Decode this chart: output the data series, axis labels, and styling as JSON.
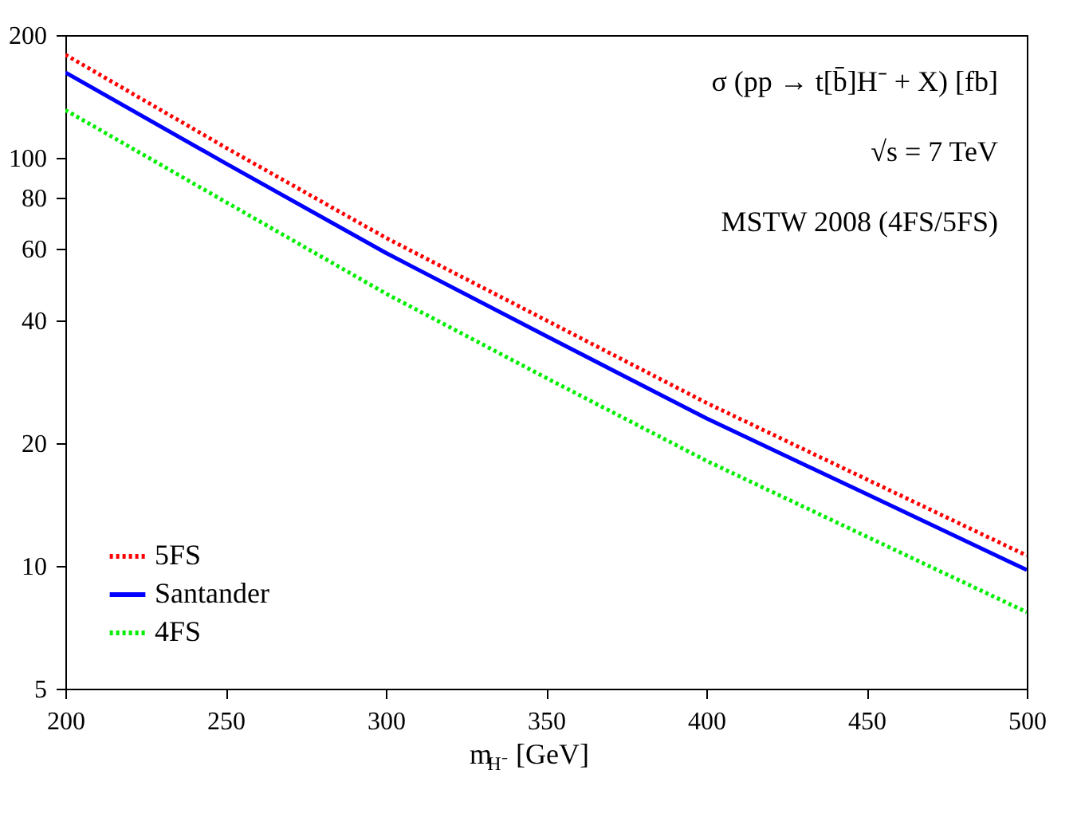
{
  "chart_data": {
    "type": "line",
    "xlabel": "m$_{H⁻}$ [GeV]",
    "x": [
      200,
      250,
      300,
      350,
      400,
      450,
      500
    ],
    "series": [
      {
        "name": "5FS",
        "color": "#ff0000",
        "line_style": "dotted",
        "values": [
          179,
          106,
          63.7,
          40,
          25.1,
          16.3,
          10.6
        ]
      },
      {
        "name": "Santander",
        "color": "#0000ff",
        "line_style": "solid",
        "values": [
          162,
          97,
          58.5,
          36.6,
          23.0,
          15.0,
          9.77
        ]
      },
      {
        "name": "4FS",
        "color": "#00ee00",
        "line_style": "dotted",
        "values": [
          131,
          78,
          46.5,
          28.9,
          18.1,
          11.8,
          7.7
        ]
      }
    ],
    "xlim": [
      200,
      500
    ],
    "ylim": [
      5,
      200
    ],
    "log": true,
    "xticks": [
      200,
      250,
      300,
      350,
      400,
      450,
      500
    ],
    "yticks": [
      5,
      10,
      20,
      40,
      60,
      80,
      100,
      200
    ],
    "annotations": [
      "σ (pp → t[b̄]H⁻ + X) [fb]",
      "√s = 7 TeV",
      "MSTW 2008 (4FS/5FS)"
    ],
    "grid": false,
    "legend": "bottom left"
  }
}
